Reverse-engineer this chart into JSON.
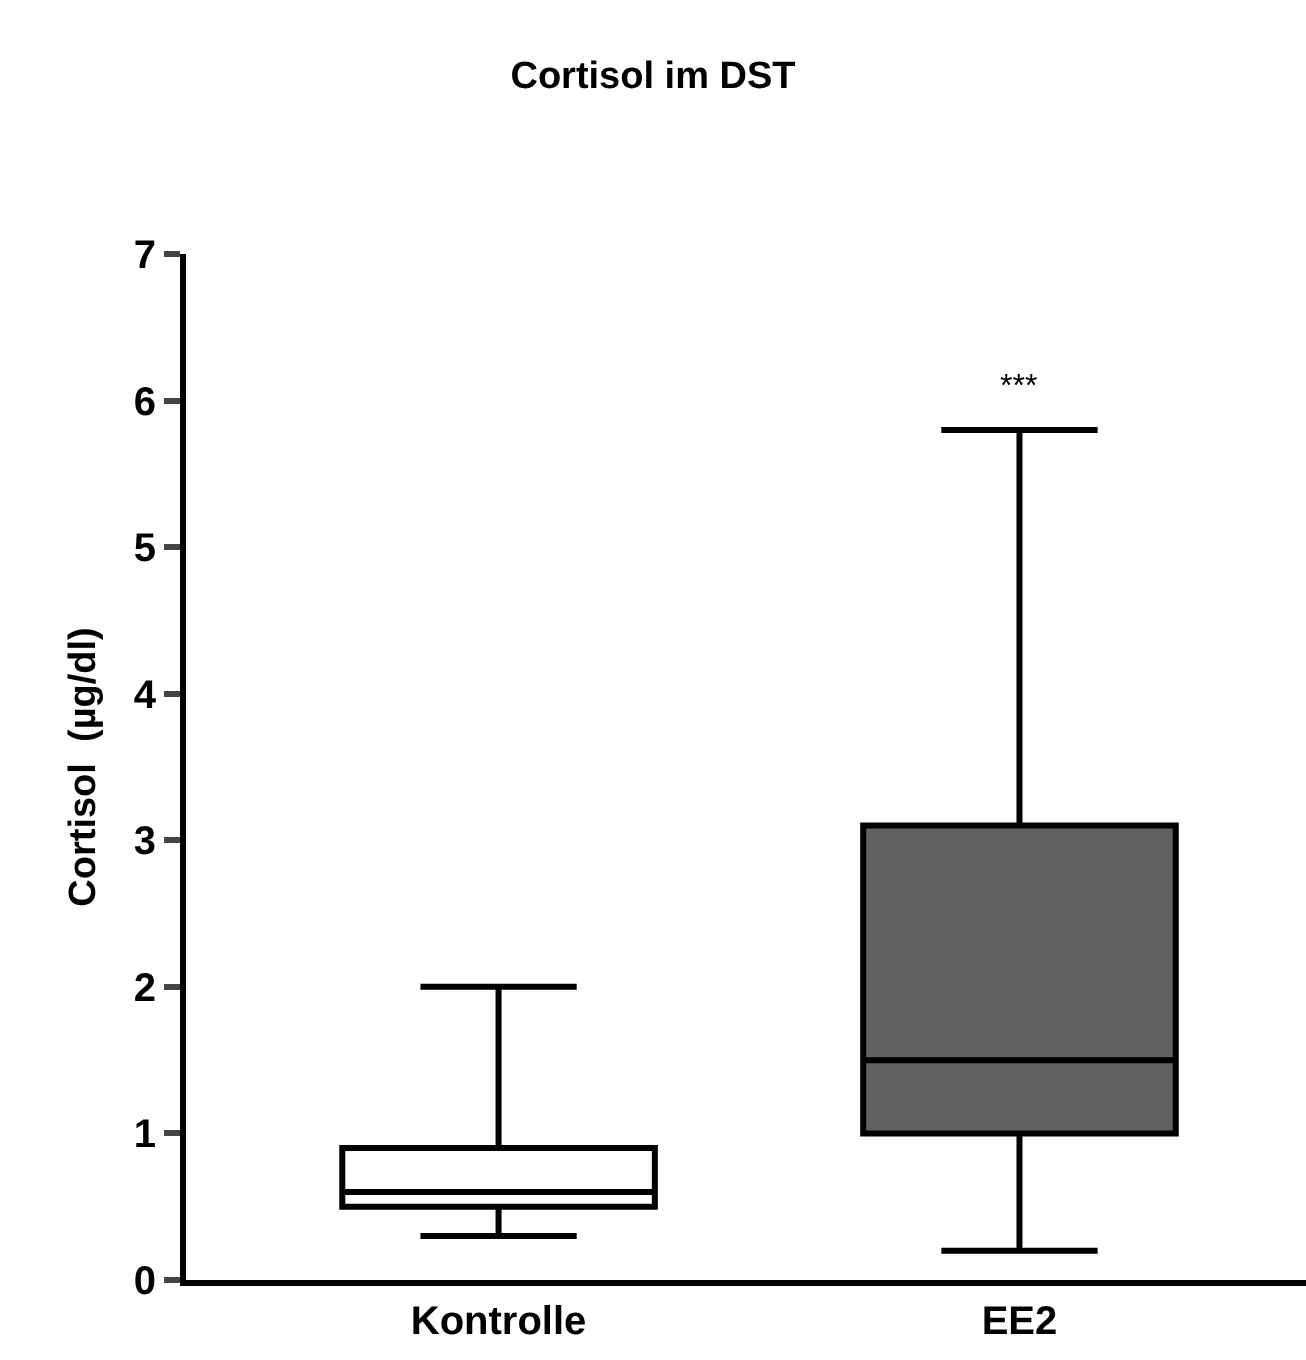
{
  "chart_data": {
    "type": "box",
    "title": "Cortisol im DST",
    "ylabel": "Cortisol  (µg/dl)",
    "categories": [
      "Kontrolle",
      "EE2"
    ],
    "boxes": [
      {
        "low": 0.3,
        "q1": 0.5,
        "median": 0.6,
        "q3": 0.9,
        "high": 2.0
      },
      {
        "low": 0.2,
        "q1": 1.0,
        "median": 1.5,
        "q3": 3.1,
        "high": 5.8
      }
    ],
    "colors": [
      "#ffffff",
      "#606060"
    ],
    "ylim": [
      0,
      7
    ],
    "yticks": [
      0,
      1,
      2,
      3,
      4,
      5,
      6,
      7
    ],
    "annotations": [
      "***"
    ]
  }
}
